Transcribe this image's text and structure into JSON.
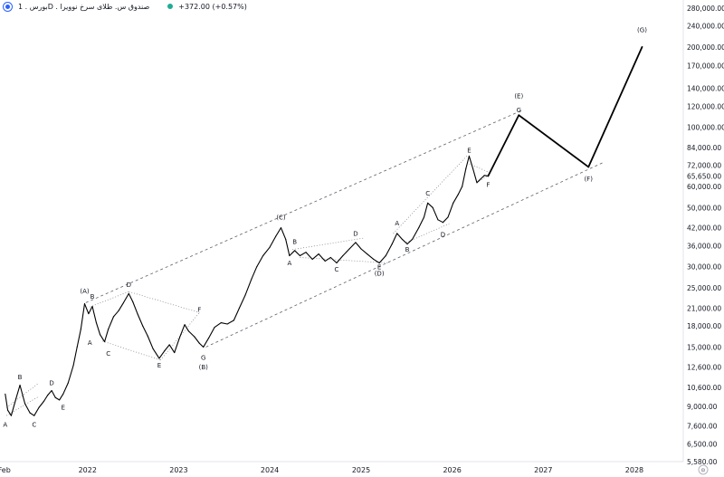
{
  "header": {
    "symbol": "بورس . 1D . صندوق س. طلای سرخ نوویرا",
    "change": "+372.00 (+0.57%)"
  },
  "settings_glyph": "⚙",
  "chart_data": {
    "type": "line",
    "y_scale": "log",
    "ylim": [
      5580,
      300000
    ],
    "xlim": [
      "2021-01-15",
      "2028-07-15"
    ],
    "y_ticks": [
      "280,000.00",
      "240,000.00",
      "200,000.00",
      "170,000.00",
      "140,000.00",
      "120,000.00",
      "100,000.00",
      "84,000.00",
      "72,000.00",
      "65,650.00",
      "60,000.00",
      "50,000.00",
      "42,000.00",
      "36,000.00",
      "30,000.00",
      "25,000.00",
      "21,000.00",
      "18,000.00",
      "15,000.00",
      "12,600.00",
      "10,600.00",
      "9,000.00",
      "7,600.00",
      "6,500.00",
      "5,580.00"
    ],
    "x_ticks": [
      {
        "label": "Feb",
        "date": "2021-02-01"
      },
      {
        "label": "2022",
        "date": "2022-01-01"
      },
      {
        "label": "2023",
        "date": "2023-01-01"
      },
      {
        "label": "2024",
        "date": "2024-01-01"
      },
      {
        "label": "2025",
        "date": "2025-01-01"
      },
      {
        "label": "2026",
        "date": "2026-01-01"
      },
      {
        "label": "2027",
        "date": "2027-01-01"
      },
      {
        "label": "2028",
        "date": "2028-01-01"
      }
    ],
    "price": [
      [
        "2021-02-05",
        10000
      ],
      [
        "2021-02-15",
        8700
      ],
      [
        "2021-03-01",
        8300
      ],
      [
        "2021-03-20",
        9600
      ],
      [
        "2021-04-05",
        10800
      ],
      [
        "2021-04-25",
        9200
      ],
      [
        "2021-05-15",
        8500
      ],
      [
        "2021-06-01",
        8300
      ],
      [
        "2021-06-20",
        8900
      ],
      [
        "2021-07-10",
        9400
      ],
      [
        "2021-07-25",
        9900
      ],
      [
        "2021-08-10",
        10300
      ],
      [
        "2021-08-25",
        9700
      ],
      [
        "2021-09-10",
        9500
      ],
      [
        "2021-09-25",
        10000
      ],
      [
        "2021-10-15",
        11000
      ],
      [
        "2021-11-05",
        12800
      ],
      [
        "2021-11-20",
        15000
      ],
      [
        "2021-12-05",
        17500
      ],
      [
        "2021-12-20",
        21800
      ],
      [
        "2022-01-05",
        20000
      ],
      [
        "2022-01-20",
        21300
      ],
      [
        "2022-02-05",
        18500
      ],
      [
        "2022-02-20",
        16700
      ],
      [
        "2022-03-10",
        15700
      ],
      [
        "2022-03-25",
        17500
      ],
      [
        "2022-04-15",
        19500
      ],
      [
        "2022-05-05",
        20500
      ],
      [
        "2022-05-25",
        22000
      ],
      [
        "2022-06-15",
        23800
      ],
      [
        "2022-07-01",
        22200
      ],
      [
        "2022-07-20",
        20000
      ],
      [
        "2022-08-10",
        18000
      ],
      [
        "2022-08-30",
        16500
      ],
      [
        "2022-09-20",
        14800
      ],
      [
        "2022-10-15",
        13600
      ],
      [
        "2022-11-05",
        14500
      ],
      [
        "2022-11-25",
        15300
      ],
      [
        "2022-12-15",
        14300
      ],
      [
        "2023-01-05",
        16300
      ],
      [
        "2023-01-25",
        18200
      ],
      [
        "2023-02-10",
        17200
      ],
      [
        "2023-03-05",
        16400
      ],
      [
        "2023-03-25",
        15500
      ],
      [
        "2023-04-10",
        15000
      ],
      [
        "2023-05-01",
        16200
      ],
      [
        "2023-05-25",
        17800
      ],
      [
        "2023-06-20",
        18500
      ],
      [
        "2023-07-15",
        18300
      ],
      [
        "2023-08-10",
        18900
      ],
      [
        "2023-09-01",
        21000
      ],
      [
        "2023-09-25",
        23500
      ],
      [
        "2023-10-20",
        27000
      ],
      [
        "2023-11-10",
        30000
      ],
      [
        "2023-12-05",
        33000
      ],
      [
        "2024-01-01",
        35500
      ],
      [
        "2024-01-25",
        39000
      ],
      [
        "2024-02-15",
        42000
      ],
      [
        "2024-03-05",
        38000
      ],
      [
        "2024-03-20",
        33000
      ],
      [
        "2024-04-10",
        34500
      ],
      [
        "2024-05-01",
        33000
      ],
      [
        "2024-05-25",
        34000
      ],
      [
        "2024-06-20",
        32000
      ],
      [
        "2024-07-15",
        33500
      ],
      [
        "2024-08-10",
        31500
      ],
      [
        "2024-09-01",
        32500
      ],
      [
        "2024-09-25",
        31000
      ],
      [
        "2024-10-20",
        33000
      ],
      [
        "2024-11-15",
        35000
      ],
      [
        "2024-12-10",
        37000
      ],
      [
        "2025-01-01",
        35000
      ],
      [
        "2025-01-25",
        33500
      ],
      [
        "2025-02-20",
        32000
      ],
      [
        "2025-03-15",
        31000
      ],
      [
        "2025-04-10",
        33000
      ],
      [
        "2025-05-05",
        36500
      ],
      [
        "2025-05-25",
        40000
      ],
      [
        "2025-06-15",
        38000
      ],
      [
        "2025-07-05",
        36500
      ],
      [
        "2025-07-25",
        38000
      ],
      [
        "2025-08-20",
        42000
      ],
      [
        "2025-09-10",
        46000
      ],
      [
        "2025-09-25",
        52000
      ],
      [
        "2025-10-15",
        50000
      ],
      [
        "2025-11-05",
        45000
      ],
      [
        "2025-11-25",
        44000
      ],
      [
        "2025-12-15",
        46000
      ],
      [
        "2026-01-05",
        52000
      ],
      [
        "2026-01-25",
        56000
      ],
      [
        "2026-02-10",
        60000
      ],
      [
        "2026-02-25",
        70000
      ],
      [
        "2026-03-10",
        78000
      ],
      [
        "2026-03-25",
        70000
      ],
      [
        "2026-04-10",
        62000
      ],
      [
        "2026-04-25",
        64000
      ],
      [
        "2026-05-10",
        66000
      ],
      [
        "2026-05-25",
        65650
      ]
    ],
    "projection": [
      [
        "2026-05-25",
        65650
      ],
      [
        "2026-09-25",
        111000
      ],
      [
        "2027-07-01",
        71000
      ],
      [
        "2028-02-01",
        200000
      ]
    ],
    "channels": [
      {
        "style": "dashed",
        "from": [
          "2021-12-25",
          22000
        ],
        "to": [
          "2026-10-01",
          115000
        ]
      },
      {
        "style": "dashed",
        "from": [
          "2023-04-20",
          15000
        ],
        "to": [
          "2027-09-01",
          74000
        ]
      }
    ],
    "dotted_lines": [
      [
        [
          "2021-02-10",
          8900
        ],
        [
          "2021-06-20",
          11000
        ]
      ],
      [
        [
          "2021-02-10",
          8300
        ],
        [
          "2021-06-20",
          9800
        ]
      ],
      [
        [
          "2022-01-10",
          21200
        ],
        [
          "2022-06-15",
          24200
        ]
      ],
      [
        [
          "2022-03-01",
          15800
        ],
        [
          "2022-10-20",
          13400
        ]
      ],
      [
        [
          "2022-06-15",
          24200
        ],
        [
          "2023-03-25",
          20200
        ]
      ],
      [
        [
          "2022-10-20",
          13400
        ],
        [
          "2023-03-25",
          20200
        ]
      ],
      [
        [
          "2024-04-01",
          34800
        ],
        [
          "2025-01-10",
          38400
        ]
      ],
      [
        [
          "2024-05-01",
          32500
        ],
        [
          "2025-04-20",
          31000
        ]
      ],
      [
        [
          "2025-07-01",
          37000
        ],
        [
          "2025-12-20",
          43500
        ]
      ],
      [
        [
          "2025-05-10",
          40000
        ],
        [
          "2026-03-01",
          78000
        ]
      ],
      [
        [
          "2026-03-10",
          73000
        ],
        [
          "2026-05-25",
          68000
        ]
      ],
      [
        [
          "2026-04-10",
          62000
        ],
        [
          "2026-05-25",
          66000
        ]
      ]
    ],
    "wave_labels": [
      {
        "text": "A",
        "date": "2021-02-05",
        "value": 7700
      },
      {
        "text": "B",
        "date": "2021-04-05",
        "value": 11600
      },
      {
        "text": "C",
        "date": "2021-06-01",
        "value": 7700
      },
      {
        "text": "D",
        "date": "2021-08-10",
        "value": 11000
      },
      {
        "text": "E",
        "date": "2021-09-25",
        "value": 8900
      },
      {
        "text": "(A)",
        "date": "2021-12-20",
        "value": 24300
      },
      {
        "text": "B",
        "date": "2022-01-20",
        "value": 23200
      },
      {
        "text": "A",
        "date": "2022-01-10",
        "value": 15600
      },
      {
        "text": "C",
        "date": "2022-03-25",
        "value": 14200
      },
      {
        "text": "D",
        "date": "2022-06-15",
        "value": 25700
      },
      {
        "text": "E",
        "date": "2022-10-15",
        "value": 12800
      },
      {
        "text": "F",
        "date": "2023-03-25",
        "value": 20700
      },
      {
        "text": "G",
        "date": "2023-04-10",
        "value": 13700
      },
      {
        "text": "(B)",
        "date": "2023-04-10",
        "value": 12600
      },
      {
        "text": "(C)",
        "date": "2024-02-15",
        "value": 46000
      },
      {
        "text": "A",
        "date": "2024-03-20",
        "value": 31000
      },
      {
        "text": "B",
        "date": "2024-04-10",
        "value": 37200
      },
      {
        "text": "C",
        "date": "2024-09-25",
        "value": 29400
      },
      {
        "text": "D",
        "date": "2024-12-10",
        "value": 40000
      },
      {
        "text": "E",
        "date": "2025-03-15",
        "value": 29900
      },
      {
        "text": "(D)",
        "date": "2025-03-15",
        "value": 28300
      },
      {
        "text": "A",
        "date": "2025-05-25",
        "value": 43800
      },
      {
        "text": "B",
        "date": "2025-07-05",
        "value": 34800
      },
      {
        "text": "C",
        "date": "2025-09-25",
        "value": 56600
      },
      {
        "text": "D",
        "date": "2025-11-25",
        "value": 39700
      },
      {
        "text": "E",
        "date": "2026-03-10",
        "value": 82000
      },
      {
        "text": "F",
        "date": "2026-05-25",
        "value": 61000
      },
      {
        "text": "G",
        "date": "2026-09-25",
        "value": 116000
      },
      {
        "text": "(E)",
        "date": "2026-09-25",
        "value": 131000
      },
      {
        "text": "(F)",
        "date": "2027-07-01",
        "value": 64000
      },
      {
        "text": "(G)",
        "date": "2028-02-01",
        "value": 232000
      }
    ]
  }
}
